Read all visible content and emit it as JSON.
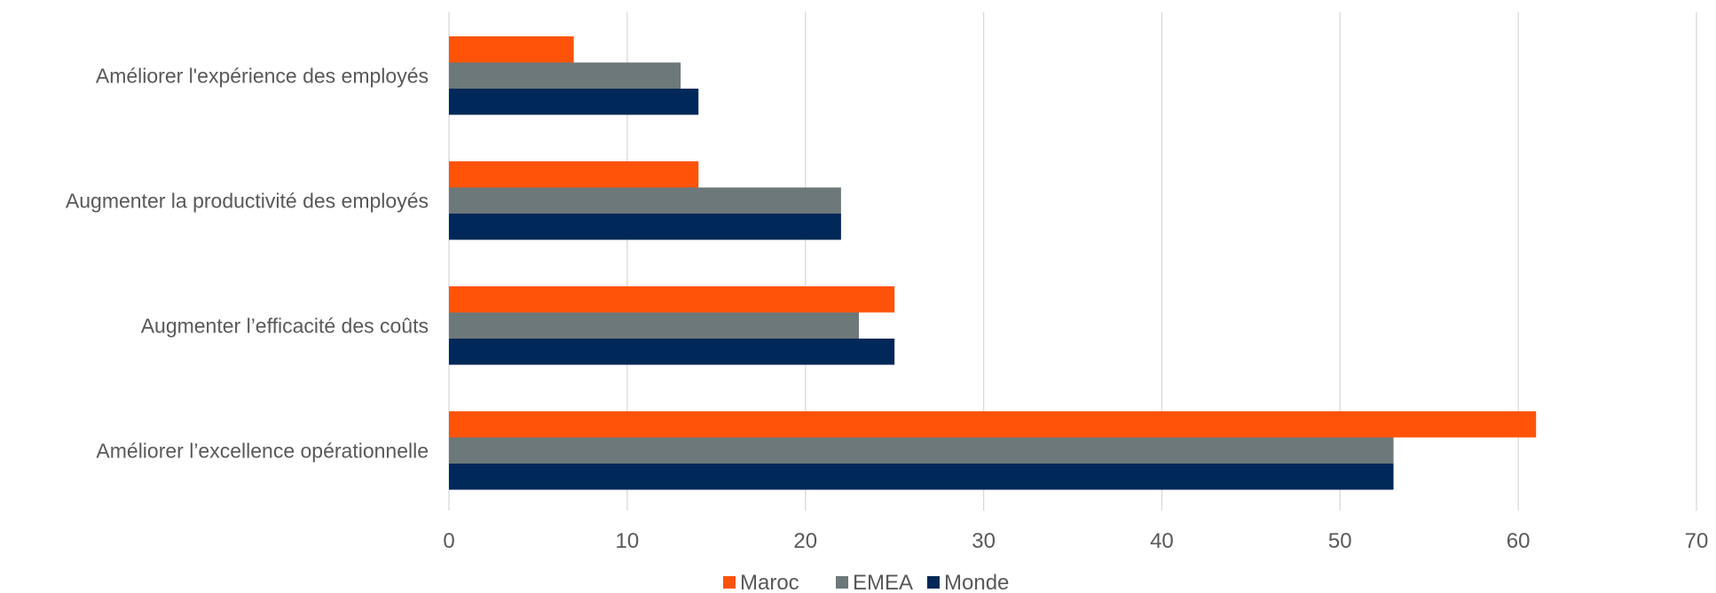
{
  "chart_data": {
    "type": "bar",
    "orientation": "horizontal",
    "categories": [
      "Améliorer l’excellence opérationnelle",
      "Augmenter l’efficacité des coûts",
      "Augmenter la productivité des employés",
      "Améliorer l'expérience des employés"
    ],
    "series": [
      {
        "name": "Maroc",
        "color": "#ff5309",
        "values": [
          61,
          25,
          14,
          7
        ]
      },
      {
        "name": "EMEA",
        "color": "#6c7879",
        "values": [
          53,
          23,
          22,
          13
        ]
      },
      {
        "name": "Monde",
        "color": "#002858",
        "values": [
          53,
          25,
          22,
          14
        ]
      }
    ],
    "xlim": [
      0,
      70
    ],
    "xticks": [
      "0",
      "10",
      "20",
      "30",
      "40",
      "50",
      "60",
      "70"
    ],
    "grid": true,
    "legend_position": "bottom"
  }
}
